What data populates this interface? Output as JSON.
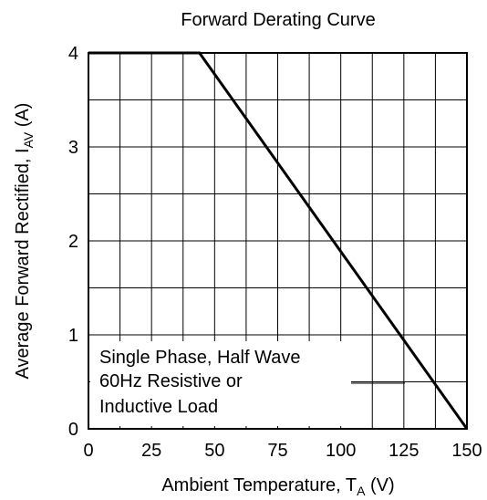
{
  "chart_data": {
    "type": "line",
    "title": "Forward Derating Curve",
    "xlabel": {
      "main": "Ambient Temperature, T",
      "sub": "A",
      "unit": " (V)"
    },
    "ylabel": {
      "main": "Average Forward Rectified, I",
      "sub": "AV",
      "unit": " (A)"
    },
    "xlim": [
      0,
      150
    ],
    "ylim": [
      0,
      4
    ],
    "x_ticks": [
      0,
      25,
      50,
      75,
      100,
      125,
      150
    ],
    "y_ticks": [
      0,
      1,
      2,
      3,
      4
    ],
    "grid": true,
    "series": [
      {
        "x": [
          0,
          44,
          150
        ],
        "y": [
          4,
          4,
          0
        ]
      }
    ],
    "annotation": [
      "Single Phase, Half Wave",
      "60Hz Resistive or",
      "Inductive Load"
    ]
  }
}
